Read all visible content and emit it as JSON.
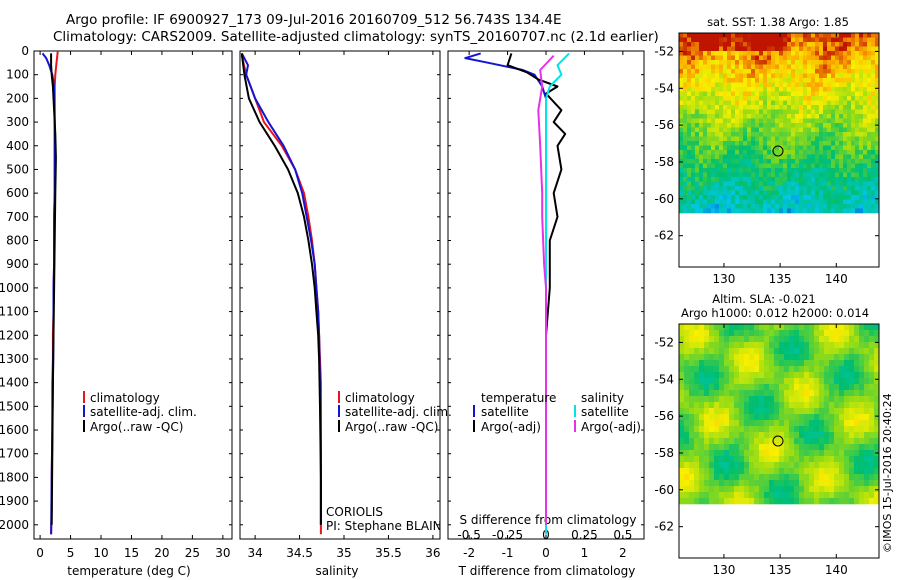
{
  "header": {
    "line1": "Argo profile: IF 6900927_173 09-Jul-2016 20160709_512 56.743S 134.4E",
    "line2": "Climatology: CARS2009. Satellite-adjusted climatology: synTS_20160707.nc (2.1d earlier)"
  },
  "colors": {
    "climatology": "#e8141e",
    "satellite": "#1414d2",
    "argo": "#000000",
    "sat_salinity": "#00e4e6",
    "argo_salinity_adj": "#e632e6"
  },
  "depth_ticks": [
    0,
    100,
    200,
    300,
    400,
    500,
    600,
    700,
    800,
    900,
    1000,
    1100,
    1200,
    1300,
    1400,
    1500,
    1600,
    1700,
    1800,
    1900,
    2000
  ],
  "charts": {
    "temperature": {
      "xlabel": "temperature (deg C)",
      "xticks": [
        "0",
        "5",
        "10",
        "15",
        "20",
        "25",
        "30"
      ],
      "legend": [
        "climatology",
        "satellite-adj. clim.",
        "Argo(..raw -QC)"
      ]
    },
    "salinity": {
      "xlabel": "salinity",
      "xticks": [
        "34",
        "34.5",
        "35",
        "35.5",
        "36"
      ],
      "legend": [
        "climatology",
        "satellite-adj. clim.",
        "Argo(..raw -QC)"
      ],
      "note1": "CORIOLIS",
      "note2": "PI: Stephane BLAIN"
    },
    "difference": {
      "xlabel": "T difference from climatology",
      "xticks_t": [
        "-2",
        "-1",
        "0",
        "1",
        "2"
      ],
      "xlabel_s": "S difference from climatology",
      "xticks_s": [
        "-0.5",
        "-0.25",
        "0",
        "0.25",
        "0.5"
      ],
      "legend_t_title": "temperature",
      "legend_s_title": "salinity",
      "legend_t": [
        "satellite",
        "Argo(-adj)"
      ],
      "legend_s": [
        "satellite",
        "Argo(-adj)"
      ]
    },
    "sst_map": {
      "title": "sat. SST: 1.38 Argo: 1.85",
      "yticks": [
        "-52",
        "-54",
        "-56",
        "-58",
        "-60",
        "-62"
      ],
      "xticks": [
        "130",
        "135",
        "140"
      ]
    },
    "sla_map": {
      "title1": "Altim. SLA: -0.021",
      "title2": "Argo h1000: 0.012 h2000: 0.014",
      "yticks": [
        "-52",
        "-54",
        "-56",
        "-58",
        "-60",
        "-62"
      ],
      "xticks": [
        "130",
        "135",
        "140"
      ]
    },
    "side_note": "©IMOS 15-Jul-2016 20:40:24"
  },
  "chart_data": [
    {
      "type": "line",
      "name": "temperature profile",
      "xlabel": "temperature (deg C)",
      "ylabel": "",
      "xlim": [
        -1,
        31.5
      ],
      "ylim": [
        2060,
        0
      ],
      "series": [
        {
          "name": "climatology",
          "x": [
            2.9,
            2.7,
            2.5,
            2.4,
            2.4,
            2.4,
            2.4,
            2.4,
            2.4,
            2.3,
            2.3,
            2.3,
            2.2,
            2.2,
            2.1,
            2.1,
            2.0,
            2.0,
            1.9,
            1.9,
            1.8
          ],
          "y": [
            0,
            50,
            100,
            150,
            200,
            300,
            400,
            500,
            600,
            700,
            800,
            900,
            1000,
            1100,
            1200,
            1300,
            1400,
            1600,
            1800,
            1950,
            2040
          ]
        },
        {
          "name": "satellite-adj. clim.",
          "x": [
            0.4,
            1.0,
            1.5,
            2.0,
            2.3,
            2.4,
            2.4,
            2.4,
            2.3,
            2.3,
            2.2,
            2.2,
            2.1,
            2.0,
            1.9,
            1.8
          ],
          "y": [
            10,
            30,
            60,
            100,
            150,
            300,
            400,
            600,
            700,
            900,
            1000,
            1200,
            1400,
            1600,
            1800,
            2040
          ]
        },
        {
          "name": "Argo(..raw -QC)",
          "x": [
            1.8,
            1.8,
            1.9,
            2.1,
            2.3,
            2.5,
            2.6,
            2.5,
            2.4,
            2.3,
            2.2,
            2.1,
            2.0,
            1.9
          ],
          "y": [
            10,
            60,
            100,
            150,
            250,
            350,
            450,
            600,
            800,
            1000,
            1200,
            1400,
            1700,
            2000
          ]
        }
      ]
    },
    {
      "type": "line",
      "name": "salinity profile",
      "xlabel": "salinity",
      "xlim": [
        33.83,
        36.08
      ],
      "ylim": [
        2060,
        0
      ],
      "series": [
        {
          "name": "climatology",
          "x": [
            33.85,
            33.9,
            34.0,
            34.1,
            34.3,
            34.45,
            34.55,
            34.6,
            34.64,
            34.67,
            34.69,
            34.71,
            34.72,
            34.73,
            34.74,
            34.74,
            34.74
          ],
          "y": [
            20,
            100,
            200,
            300,
            400,
            500,
            600,
            700,
            800,
            900,
            1000,
            1100,
            1200,
            1300,
            1400,
            1600,
            2040
          ]
        },
        {
          "name": "satellite-adj. clim.",
          "x": [
            33.85,
            33.92,
            33.9,
            34.0,
            34.15,
            34.32,
            34.45,
            34.53,
            34.58,
            34.63,
            34.67,
            34.69,
            34.71,
            34.72,
            34.73,
            34.74,
            34.74
          ],
          "y": [
            10,
            60,
            100,
            200,
            300,
            400,
            500,
            600,
            700,
            800,
            900,
            1000,
            1100,
            1200,
            1400,
            1700,
            2000
          ]
        },
        {
          "name": "Argo(..raw -QC)",
          "x": [
            33.85,
            33.88,
            33.93,
            34.05,
            34.22,
            34.37,
            34.48,
            34.55,
            34.6,
            34.64,
            34.67,
            34.69,
            34.71,
            34.72,
            34.73,
            34.74,
            34.74
          ],
          "y": [
            10,
            100,
            200,
            300,
            400,
            500,
            600,
            700,
            800,
            900,
            1000,
            1100,
            1200,
            1300,
            1500,
            1800,
            2000
          ]
        }
      ]
    },
    {
      "type": "line",
      "name": "difference from climatology",
      "xlabel": "T difference from climatology",
      "xlim": [
        -2.55,
        2.55
      ],
      "ylim": [
        2060,
        0
      ],
      "series": [
        {
          "name": "satellite",
          "x": [
            -1.7,
            -2.1,
            -1.5,
            -0.6,
            -0.3,
            -0.1,
            0.0,
            0.0,
            0.0,
            0.0,
            0.0,
            0.0
          ],
          "y": [
            10,
            30,
            50,
            80,
            100,
            150,
            200,
            400,
            800,
            1200,
            1600,
            2040
          ]
        },
        {
          "name": "Argo(-adj)",
          "x": [
            -0.9,
            -1.0,
            -0.5,
            -0.2,
            0.3,
            0.0,
            0.4,
            0.2,
            0.5,
            0.3,
            0.4,
            0.2,
            0.3,
            0.1,
            0.1,
            0.0
          ],
          "y": [
            10,
            60,
            90,
            120,
            150,
            180,
            250,
            300,
            350,
            400,
            500,
            600,
            700,
            800,
            1000,
            1200
          ]
        },
        {
          "name": "satellite (salinity)",
          "x": [
            0.6,
            0.3,
            0.4,
            0.1,
            0.0,
            0.0,
            0.0,
            0.0,
            0.0,
            0.0,
            0.0
          ],
          "y": [
            10,
            60,
            100,
            150,
            200,
            300,
            500,
            800,
            1200,
            1600,
            2040
          ]
        },
        {
          "name": "Argo(-adj) (salinity)",
          "x": [
            0.2,
            -0.15,
            -0.1,
            -0.2,
            -0.15,
            -0.1,
            -0.1,
            -0.05,
            0.0,
            0.0,
            0.0,
            0.0
          ],
          "y": [
            20,
            80,
            150,
            250,
            400,
            600,
            700,
            900,
            1000,
            1200,
            1600,
            2000
          ]
        }
      ]
    },
    {
      "type": "heatmap",
      "name": "sat. SST map",
      "title": "sat. SST: 1.38 Argo: 1.85",
      "xlim": [
        126,
        143.8
      ],
      "ylim": [
        -63.7,
        -51
      ],
      "data_extent_lat": [
        -60,
        -51
      ],
      "marker": {
        "lon": 134.4,
        "lat": -56.743
      }
    },
    {
      "type": "heatmap",
      "name": "altimetry SLA map",
      "title": "Altim. SLA: -0.021",
      "xlim": [
        126,
        143.8
      ],
      "ylim": [
        -63.7,
        -51
      ],
      "data_extent_lat": [
        -60,
        -51
      ],
      "marker": {
        "lon": 134.4,
        "lat": -56.743
      }
    }
  ]
}
